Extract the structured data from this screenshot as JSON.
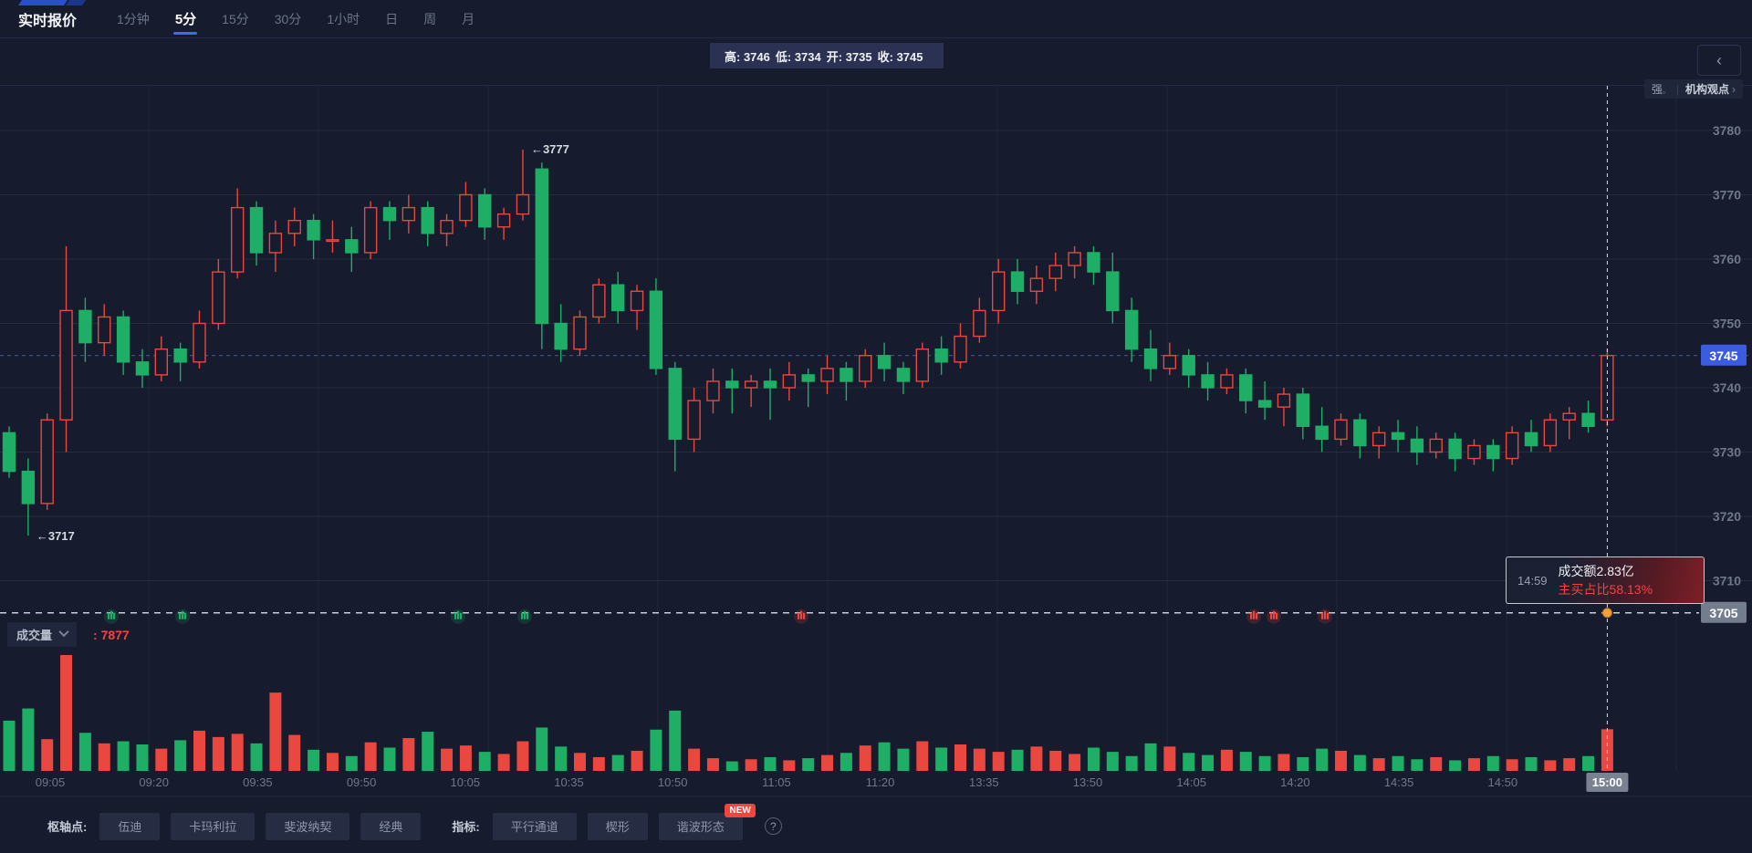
{
  "topbar": {
    "title": "实时报价",
    "tabs": [
      {
        "label": "1分钟",
        "active": false
      },
      {
        "label": "5分",
        "active": true
      },
      {
        "label": "15分",
        "active": false
      },
      {
        "label": "30分",
        "active": false
      },
      {
        "label": "1小时",
        "active": false
      },
      {
        "label": "日",
        "active": false
      },
      {
        "label": "周",
        "active": false
      },
      {
        "label": "月",
        "active": false
      }
    ]
  },
  "ohlc_bar": {
    "items": [
      {
        "label": "高:",
        "value": "3746"
      },
      {
        "label": "低:",
        "value": "3734"
      },
      {
        "label": "开:",
        "value": "3735"
      },
      {
        "label": "收:",
        "value": "3745"
      }
    ]
  },
  "right_panel": {
    "collapse_glyph": "‹",
    "strength_label": "强",
    "divider": "|",
    "link_label": "机构观点",
    "link_chevron": "›"
  },
  "tooltip": {
    "time": "14:59",
    "line1": "成交额2.83亿",
    "line2": "主买占比58.13%"
  },
  "volume_header": {
    "label": "成交量",
    "value": ": 7877"
  },
  "toolbar": {
    "pivot_label": "枢轴点:",
    "pivot_buttons": [
      "伍迪",
      "卡玛利拉",
      "斐波纳契",
      "经典"
    ],
    "indicator_label": "指标:",
    "indicator_buttons": [
      "平行通道",
      "楔形",
      "谐波形态"
    ],
    "new_badge": "NEW",
    "help_glyph": "?"
  },
  "chart_data": {
    "type": "candlestick",
    "up_color": "#e8483f",
    "down_color": "#1fae66",
    "ylim": [
      3705,
      3785
    ],
    "y_ticks": [
      3780,
      3770,
      3760,
      3750,
      3740,
      3730,
      3720,
      3710
    ],
    "price_line": {
      "value": 3745,
      "badge_color": "#3b5ce0"
    },
    "base_line": {
      "value": 3705,
      "badge_color": "#747d8d"
    },
    "high_annotation": {
      "index": 27,
      "text": "3777"
    },
    "low_annotation": {
      "index": 1,
      "text": "3717"
    },
    "x_labels": [
      "09:05",
      "09:20",
      "09:35",
      "09:50",
      "10:05",
      "10:35",
      "10:50",
      "11:05",
      "11:20",
      "13:35",
      "13:50",
      "14:05",
      "14:20",
      "14:35",
      "14:50",
      "15:00"
    ],
    "crosshair": {
      "index": 84,
      "time_badge": "15:00",
      "dot_color": "#f0a13c"
    },
    "flow_markers": {
      "green_x": [
        122,
        200,
        502,
        575
      ],
      "red_x": [
        878,
        1374,
        1396,
        1452
      ]
    },
    "candles": [
      [
        3733,
        3734,
        3726,
        3727
      ],
      [
        3727,
        3729,
        3717,
        3722
      ],
      [
        3722,
        3736,
        3721,
        3735
      ],
      [
        3735,
        3762,
        3730,
        3752
      ],
      [
        3752,
        3754,
        3744,
        3747
      ],
      [
        3747,
        3753,
        3745,
        3751
      ],
      [
        3751,
        3752,
        3742,
        3744
      ],
      [
        3744,
        3746,
        3740,
        3742
      ],
      [
        3742,
        3748,
        3741,
        3746
      ],
      [
        3746,
        3747,
        3741,
        3744
      ],
      [
        3744,
        3752,
        3743,
        3750
      ],
      [
        3750,
        3760,
        3749,
        3758
      ],
      [
        3758,
        3771,
        3757,
        3768
      ],
      [
        3768,
        3769,
        3759,
        3761
      ],
      [
        3761,
        3766,
        3758,
        3764
      ],
      [
        3764,
        3768,
        3762,
        3766
      ],
      [
        3766,
        3767,
        3760,
        3763
      ],
      [
        3763,
        3766,
        3761,
        3763
      ],
      [
        3763,
        3765,
        3758,
        3761
      ],
      [
        3761,
        3769,
        3760,
        3768
      ],
      [
        3768,
        3769,
        3763,
        3766
      ],
      [
        3766,
        3770,
        3764,
        3768
      ],
      [
        3768,
        3769,
        3762,
        3764
      ],
      [
        3764,
        3767,
        3762,
        3766
      ],
      [
        3766,
        3772,
        3765,
        3770
      ],
      [
        3770,
        3771,
        3763,
        3765
      ],
      [
        3765,
        3768,
        3763,
        3767
      ],
      [
        3767,
        3777,
        3766,
        3770
      ],
      [
        3774,
        3775,
        3746,
        3750
      ],
      [
        3750,
        3753,
        3744,
        3746
      ],
      [
        3746,
        3752,
        3745,
        3751
      ],
      [
        3751,
        3757,
        3750,
        3756
      ],
      [
        3756,
        3758,
        3750,
        3752
      ],
      [
        3752,
        3756,
        3749,
        3755
      ],
      [
        3755,
        3757,
        3742,
        3743
      ],
      [
        3743,
        3744,
        3727,
        3732
      ],
      [
        3732,
        3740,
        3730,
        3738
      ],
      [
        3738,
        3743,
        3736,
        3741
      ],
      [
        3741,
        3743,
        3736,
        3740
      ],
      [
        3740,
        3742,
        3737,
        3741
      ],
      [
        3741,
        3743,
        3735,
        3740
      ],
      [
        3740,
        3744,
        3738,
        3742
      ],
      [
        3742,
        3743,
        3737,
        3741
      ],
      [
        3741,
        3745,
        3739,
        3743
      ],
      [
        3743,
        3744,
        3738,
        3741
      ],
      [
        3741,
        3746,
        3740,
        3745
      ],
      [
        3745,
        3747,
        3741,
        3743
      ],
      [
        3743,
        3744,
        3739,
        3741
      ],
      [
        3741,
        3747,
        3740,
        3746
      ],
      [
        3746,
        3748,
        3742,
        3744
      ],
      [
        3744,
        3750,
        3743,
        3748
      ],
      [
        3748,
        3754,
        3747,
        3752
      ],
      [
        3752,
        3760,
        3750,
        3758
      ],
      [
        3758,
        3760,
        3753,
        3755
      ],
      [
        3755,
        3759,
        3753,
        3757
      ],
      [
        3757,
        3761,
        3755,
        3759
      ],
      [
        3759,
        3762,
        3757,
        3761
      ],
      [
        3761,
        3762,
        3756,
        3758
      ],
      [
        3758,
        3761,
        3750,
        3752
      ],
      [
        3752,
        3754,
        3744,
        3746
      ],
      [
        3746,
        3749,
        3741,
        3743
      ],
      [
        3743,
        3747,
        3742,
        3745
      ],
      [
        3745,
        3746,
        3740,
        3742
      ],
      [
        3742,
        3744,
        3738,
        3740
      ],
      [
        3740,
        3743,
        3739,
        3742
      ],
      [
        3742,
        3743,
        3736,
        3738
      ],
      [
        3738,
        3741,
        3735,
        3737
      ],
      [
        3737,
        3740,
        3734,
        3739
      ],
      [
        3739,
        3740,
        3732,
        3734
      ],
      [
        3734,
        3737,
        3730,
        3732
      ],
      [
        3732,
        3736,
        3731,
        3735
      ],
      [
        3735,
        3736,
        3729,
        3731
      ],
      [
        3731,
        3734,
        3729,
        3733
      ],
      [
        3733,
        3735,
        3730,
        3732
      ],
      [
        3732,
        3734,
        3728,
        3730
      ],
      [
        3730,
        3733,
        3729,
        3732
      ],
      [
        3732,
        3733,
        3727,
        3729
      ],
      [
        3729,
        3732,
        3728,
        3731
      ],
      [
        3731,
        3732,
        3727,
        3729
      ],
      [
        3729,
        3734,
        3728,
        3733
      ],
      [
        3733,
        3735,
        3730,
        3731
      ],
      [
        3731,
        3736,
        3730,
        3735
      ],
      [
        3735,
        3737,
        3732,
        3736
      ],
      [
        3736,
        3738,
        3733,
        3734
      ],
      [
        3735,
        3746,
        3734,
        3745
      ]
    ],
    "volumes": [
      9500,
      11800,
      6000,
      21900,
      7200,
      5200,
      5600,
      5000,
      4200,
      5800,
      7600,
      6400,
      7000,
      5200,
      14800,
      6800,
      4000,
      3400,
      2800,
      5400,
      4400,
      6200,
      7400,
      4200,
      4800,
      3600,
      3200,
      5600,
      8200,
      4600,
      3400,
      2600,
      3000,
      3800,
      7800,
      11400,
      4200,
      2400,
      1800,
      2200,
      2600,
      2000,
      2400,
      3000,
      3400,
      4800,
      5400,
      4200,
      5600,
      4400,
      5000,
      4200,
      3600,
      4000,
      4600,
      3800,
      3200,
      4400,
      3600,
      2800,
      5200,
      4600,
      3400,
      3000,
      4000,
      3600,
      2800,
      3200,
      2600,
      4200,
      3800,
      3000,
      2400,
      2800,
      2200,
      2600,
      2000,
      2400,
      2800,
      2200,
      2600,
      2000,
      2400,
      2800,
      7877
    ]
  }
}
